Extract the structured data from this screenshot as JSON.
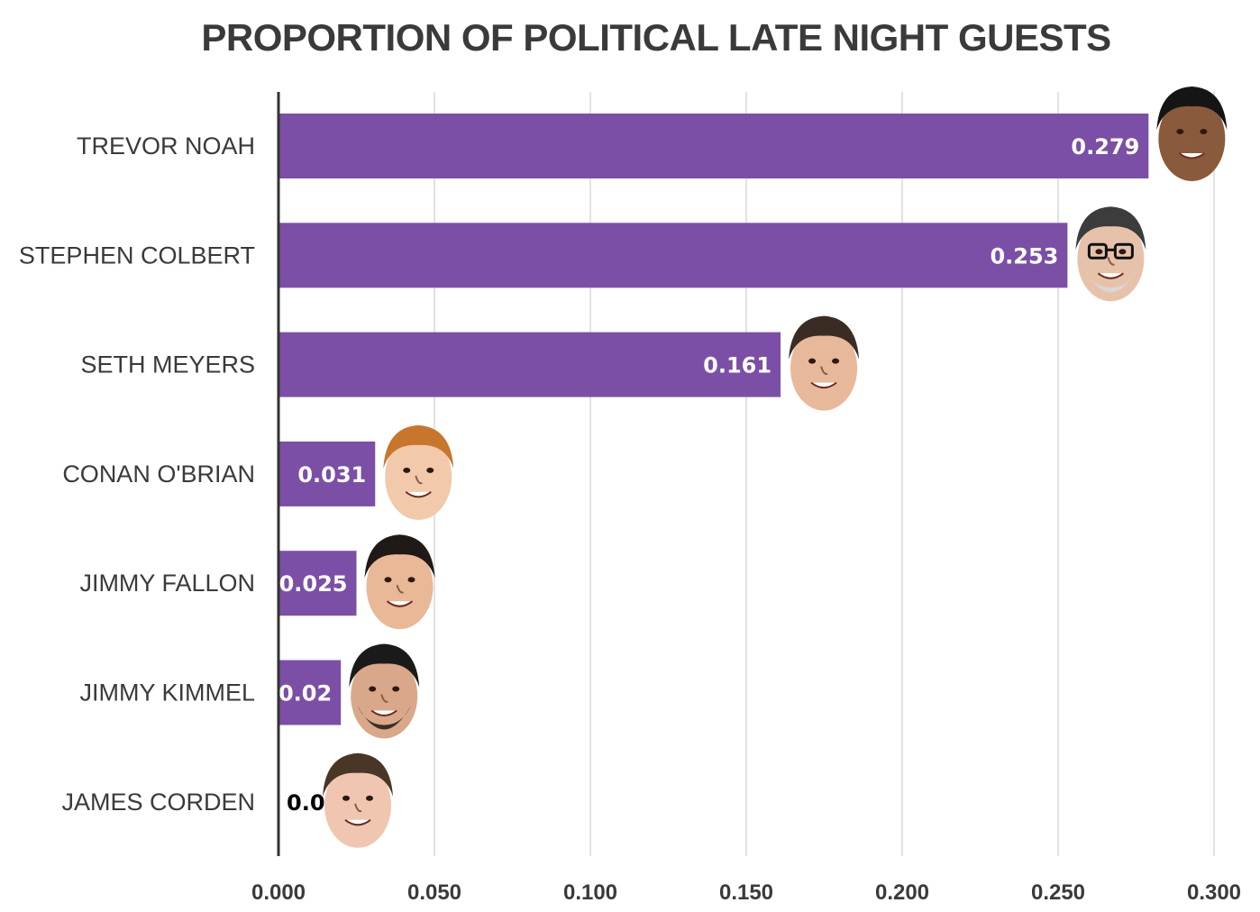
{
  "chart_data": {
    "type": "bar",
    "orientation": "horizontal",
    "title": "PROPORTION OF POLITICAL LATE NIGHT GUESTS",
    "categories": [
      "TREVOR NOAH",
      "STEPHEN COLBERT",
      "SETH MEYERS",
      "CONAN O'BRIAN",
      "JIMMY FALLON",
      "JIMMY KIMMEL",
      "JAMES CORDEN"
    ],
    "values": [
      0.279,
      0.253,
      0.161,
      0.031,
      0.025,
      0.02,
      0.0
    ],
    "value_labels": [
      "0.279",
      "0.253",
      "0.161",
      "0.031",
      "0.025",
      "0.02",
      "0.0"
    ],
    "x_ticks": [
      "0.000",
      "0.050",
      "0.100",
      "0.150",
      "0.200",
      "0.250",
      "0.300"
    ],
    "xlim": [
      0,
      0.3
    ],
    "xlabel": "",
    "ylabel": "",
    "grid": "vertical",
    "legend": "none",
    "bar_color": "#7b4fa6",
    "value_label_color": "#ffffff",
    "value_label_color_outside": "#000000",
    "face_icons": [
      "face-trevor-noah-icon",
      "face-stephen-colbert-icon",
      "face-seth-meyers-icon",
      "face-conan-obrian-icon",
      "face-jimmy-fallon-icon",
      "face-jimmy-kimmel-icon",
      "face-james-corden-icon"
    ]
  }
}
